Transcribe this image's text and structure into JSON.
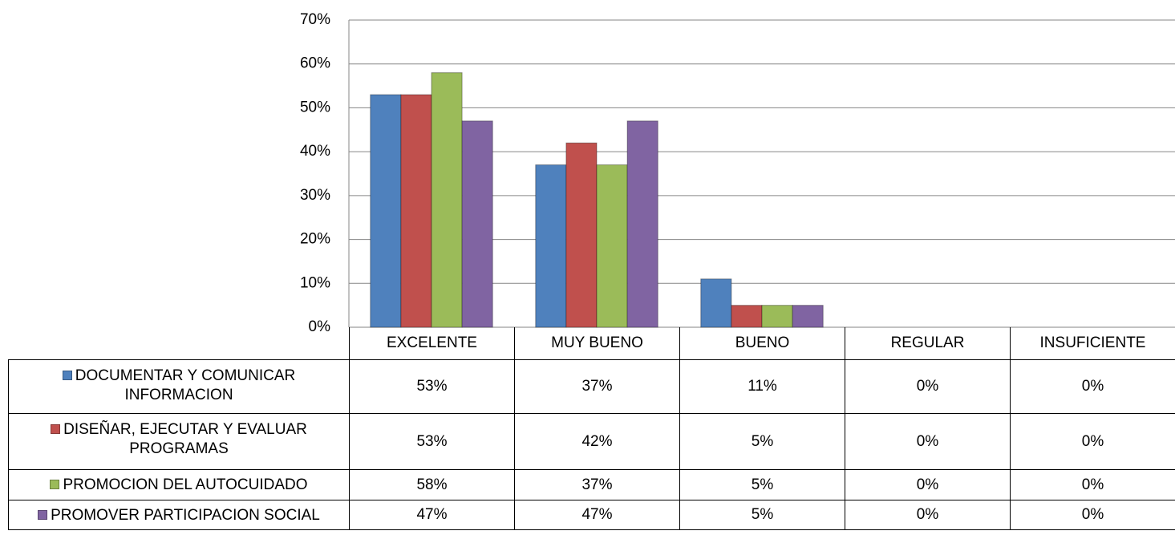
{
  "chart_data": {
    "type": "bar",
    "categories": [
      "EXCELENTE",
      "MUY BUENO",
      "BUENO",
      "REGULAR",
      "INSUFICIENTE"
    ],
    "series": [
      {
        "name": "DOCUMENTAR Y COMUNICAR INFORMACION",
        "color": "#4f81bd",
        "values": [
          53,
          37,
          11,
          0,
          0
        ],
        "value_labels": [
          "53%",
          "37%",
          "11%",
          "0%",
          "0%"
        ]
      },
      {
        "name": "DISEÑAR, EJECUTAR Y EVALUAR PROGRAMAS",
        "color": "#c0504d",
        "values": [
          53,
          42,
          5,
          0,
          0
        ],
        "value_labels": [
          "53%",
          "42%",
          "5%",
          "0%",
          "0%"
        ]
      },
      {
        "name": "PROMOCION DEL AUTOCUIDADO",
        "color": "#9bbb59",
        "values": [
          58,
          37,
          5,
          0,
          0
        ],
        "value_labels": [
          "58%",
          "37%",
          "5%",
          "0%",
          "0%"
        ]
      },
      {
        "name": "PROMOVER PARTICIPACION SOCIAL",
        "color": "#8064a2",
        "values": [
          47,
          47,
          5,
          0,
          0
        ],
        "value_labels": [
          "47%",
          "47%",
          "5%",
          "0%",
          "0%"
        ]
      }
    ],
    "ylim": [
      0,
      70
    ],
    "yticks": [
      {
        "value": 0,
        "label": "0%"
      },
      {
        "value": 10,
        "label": "10%"
      },
      {
        "value": 20,
        "label": "20%"
      },
      {
        "value": 30,
        "label": "30%"
      },
      {
        "value": 40,
        "label": "40%"
      },
      {
        "value": 50,
        "label": "50%"
      },
      {
        "value": 60,
        "label": "60%"
      },
      {
        "value": 70,
        "label": "70%"
      }
    ],
    "grid": true
  }
}
